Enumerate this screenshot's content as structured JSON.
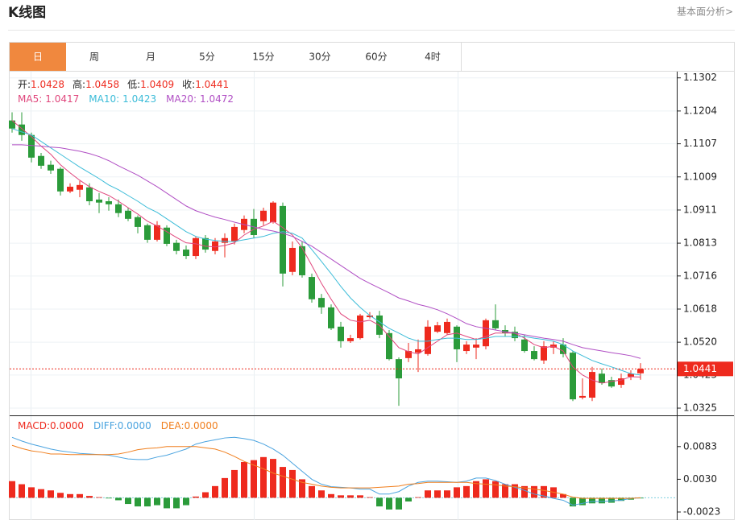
{
  "header": {
    "title": "K线图",
    "link": "基本面分析>"
  },
  "tabs": [
    "日",
    "周",
    "月",
    "5分",
    "15分",
    "30分",
    "60分",
    "4时"
  ],
  "active_tab": 0,
  "chart_data": [
    {
      "type": "candlestick",
      "up_color": "#ee2a1e",
      "down_color": "#2b9b3a",
      "ylim": [
        1.0306,
        1.1318
      ],
      "yticks": [
        1.1302,
        1.1204,
        1.1107,
        1.1009,
        1.0911,
        1.0813,
        1.0716,
        1.0618,
        {
          "value": 1.052,
          "label": "1.0520"
        },
        1.0423,
        1.0325
      ],
      "grid": true,
      "readout_labels": [
        "开:",
        "高:",
        "低:",
        "收:"
      ],
      "open": [
        1.1176,
        1.1164,
        1.1133,
        1.1071,
        1.1045,
        1.1033,
        1.0966,
        1.0971,
        1.0978,
        1.0942,
        1.0937,
        1.0928,
        1.0909,
        1.089,
        1.0866,
        1.0823,
        1.0859,
        1.0814,
        1.0794,
        1.0775,
        1.0828,
        1.079,
        1.0814,
        1.0818,
        1.0852,
        1.0885,
        1.0878,
        1.0875,
        1.0923,
        1.0728,
        1.0804,
        1.0713,
        1.0651,
        1.0623,
        1.0566,
        1.0523,
        1.0532,
        1.0594,
        1.0599,
        1.0547,
        1.047,
        1.0473,
        1.0489,
        1.0485,
        1.0551,
        1.0547,
        1.0566,
        1.0494,
        1.0504,
        1.0508,
        1.0585,
        1.0556,
        1.0551,
        1.0528,
        1.0494,
        1.0466,
        1.0504,
        1.0513,
        1.0489,
        1.0356,
        1.0356,
        1.0427,
        1.0408,
        1.0394,
        1.0418,
        1.0428
      ],
      "high": [
        1.12,
        1.12,
        1.114,
        1.108,
        1.1057,
        1.1038,
        1.099,
        1.0997,
        1.099,
        1.0961,
        1.0949,
        1.0942,
        1.0918,
        1.0895,
        1.0871,
        1.0878,
        1.0866,
        1.0823,
        1.0806,
        1.0833,
        1.0837,
        1.0828,
        1.0842,
        1.0871,
        1.0895,
        1.0914,
        1.0918,
        1.0937,
        1.0933,
        1.0818,
        1.0818,
        1.0723,
        1.0663,
        1.0632,
        1.058,
        1.0542,
        1.0604,
        1.0609,
        1.0613,
        1.0556,
        1.0475,
        1.0518,
        1.0528,
        1.0585,
        1.058,
        1.059,
        1.057,
        1.0523,
        1.0532,
        1.059,
        1.0632,
        1.057,
        1.0566,
        1.0542,
        1.0508,
        1.0523,
        1.0523,
        1.0532,
        1.0494,
        1.0413,
        1.0447,
        1.0442,
        1.0418,
        1.0427,
        1.0437,
        1.0458
      ],
      "low": [
        1.114,
        1.1116,
        1.1052,
        1.1033,
        1.1018,
        1.0954,
        1.0961,
        1.0949,
        1.0925,
        1.0902,
        1.0909,
        1.089,
        1.0878,
        1.0842,
        1.0814,
        1.0818,
        1.0804,
        1.078,
        1.0766,
        1.0766,
        1.0785,
        1.078,
        1.0771,
        1.0809,
        1.0842,
        1.0828,
        1.0866,
        1.0871,
        1.0685,
        1.0718,
        1.0711,
        1.0637,
        1.0604,
        1.0556,
        1.0504,
        1.0518,
        1.0528,
        1.059,
        1.0532,
        1.0466,
        1.0332,
        1.0461,
        1.0432,
        1.048,
        1.0547,
        1.0542,
        1.0461,
        1.0485,
        1.047,
        1.0499,
        1.0556,
        1.0537,
        1.0523,
        1.0489,
        1.0466,
        1.0456,
        1.0485,
        1.0475,
        1.0346,
        1.0351,
        1.0346,
        1.0394,
        1.0385,
        1.0385,
        1.0408,
        1.0409
      ],
      "close": [
        1.1152,
        1.1133,
        1.1066,
        1.1042,
        1.1028,
        1.0966,
        1.098,
        1.0985,
        1.0937,
        1.0933,
        1.0928,
        1.0902,
        1.0885,
        1.0861,
        1.0823,
        1.0866,
        1.0811,
        1.079,
        1.0775,
        1.0828,
        1.0794,
        1.0818,
        1.0828,
        1.0861,
        1.0885,
        1.0837,
        1.0909,
        1.0933,
        1.0723,
        1.0799,
        1.0718,
        1.0647,
        1.0623,
        1.0561,
        1.0523,
        1.0532,
        1.0599,
        1.0599,
        1.0542,
        1.047,
        1.0413,
        1.0494,
        1.0499,
        1.0566,
        1.057,
        1.058,
        1.0499,
        1.0513,
        1.0513,
        1.0585,
        1.0561,
        1.0547,
        1.0532,
        1.0494,
        1.047,
        1.0508,
        1.0513,
        1.0485,
        1.0351,
        1.0361,
        1.0432,
        1.0399,
        1.0389,
        1.0413,
        1.0427,
        1.0441
      ],
      "series": [
        {
          "name": "MA5:",
          "color": "#e0467c",
          "values": [
            1.1176,
            1.1152,
            1.1128,
            1.11,
            1.1076,
            1.1045,
            1.1021,
            1.0999,
            1.098,
            1.0966,
            1.0954,
            1.0937,
            1.0918,
            1.0899,
            1.0878,
            1.0864,
            1.0847,
            1.083,
            1.0814,
            1.0811,
            1.0804,
            1.0802,
            1.0806,
            1.0814,
            1.0837,
            1.0854,
            1.0864,
            1.0878,
            1.0859,
            1.0837,
            1.0799,
            1.0747,
            1.0694,
            1.0647,
            1.0604,
            1.0585,
            1.058,
            1.0585,
            1.057,
            1.0537,
            1.0504,
            1.0492,
            1.0485,
            1.0504,
            1.0523,
            1.0542,
            1.0547,
            1.0537,
            1.0528,
            1.0537,
            1.0547,
            1.0547,
            1.0547,
            1.0532,
            1.0513,
            1.0504,
            1.0508,
            1.0494,
            1.0447,
            1.0423,
            1.0408,
            1.0399,
            1.0404,
            1.0408,
            1.0418,
            1.0417
          ]
        },
        {
          "name": "MA10:",
          "color": "#3cbcd8",
          "values": [
            1.1152,
            1.1142,
            1.1133,
            1.1114,
            1.1095,
            1.1076,
            1.1057,
            1.1038,
            1.1021,
            1.1004,
            1.0985,
            1.0971,
            1.0954,
            1.0937,
            1.0918,
            1.0904,
            1.0885,
            1.0866,
            1.0847,
            1.0833,
            1.0825,
            1.0821,
            1.0818,
            1.0818,
            1.0823,
            1.0828,
            1.0833,
            1.0842,
            1.0847,
            1.0842,
            1.0828,
            1.0794,
            1.0759,
            1.0723,
            1.0685,
            1.0651,
            1.0623,
            1.0599,
            1.058,
            1.0561,
            1.0547,
            1.0532,
            1.0523,
            1.0523,
            1.0528,
            1.0532,
            1.0532,
            1.0528,
            1.0528,
            1.0532,
            1.0537,
            1.0537,
            1.0537,
            1.0537,
            1.0532,
            1.0528,
            1.0523,
            1.0513,
            1.0494,
            1.048,
            1.0466,
            1.0456,
            1.0447,
            1.0437,
            1.0427,
            1.0423
          ]
        },
        {
          "name": "MA20:",
          "color": "#b04ec4",
          "values": [
            1.1104,
            1.1104,
            1.1102,
            1.11,
            1.1097,
            1.1095,
            1.109,
            1.1085,
            1.1078,
            1.1069,
            1.1057,
            1.1042,
            1.1028,
            1.1014,
            1.0997,
            1.098,
            1.0961,
            1.0942,
            1.0923,
            1.0909,
            1.0899,
            1.089,
            1.0883,
            1.0875,
            1.0868,
            1.0861,
            1.0854,
            1.0849,
            1.0842,
            1.0833,
            1.0818,
            1.0804,
            1.0785,
            1.0766,
            1.0747,
            1.0728,
            1.0709,
            1.0694,
            1.068,
            1.0666,
            1.0651,
            1.0642,
            1.0632,
            1.0625,
            1.0616,
            1.0604,
            1.059,
            1.0575,
            1.0566,
            1.0561,
            1.0556,
            1.0551,
            1.0547,
            1.0542,
            1.0537,
            1.0532,
            1.0528,
            1.0523,
            1.0513,
            1.0504,
            1.0499,
            1.0494,
            1.0489,
            1.0485,
            1.048,
            1.0472
          ]
        }
      ]
    },
    {
      "type": "macd",
      "ylim": [
        -0.0036,
        0.0131
      ],
      "yticks": [
        0.0083,
        {
          "value": 0.003,
          "label": "0.0030"
        },
        -0.0023
      ],
      "bars": {
        "name": "MACD:",
        "up_color": "#ee2a1e",
        "down_color": "#2b9b3a",
        "readout": {
          "value": 0,
          "label": "0.0000"
        },
        "values": [
          0.0027,
          0.0022,
          0.0017,
          0.0014,
          0.0012,
          0.0008,
          0.0006,
          0.0006,
          0.0003,
          0.0001,
          -0.0001,
          -0.0004,
          -0.001,
          -0.0014,
          -0.0014,
          -0.0012,
          -0.0017,
          -0.0017,
          -0.0012,
          0.0002,
          0.0009,
          0.0019,
          0.0032,
          0.0045,
          0.0058,
          0.0061,
          0.0066,
          0.0063,
          0.005,
          0.0045,
          0.003,
          0.0019,
          0.0012,
          0.0006,
          0.0004,
          0.0004,
          0.0004,
          0.0001,
          -0.0014,
          -0.0019,
          -0.0019,
          -0.0006,
          0.0001,
          0.0012,
          0.0012,
          0.0012,
          0.0017,
          0.0019,
          0.0027,
          0.003,
          0.0027,
          0.0022,
          0.0022,
          0.0019,
          0.0019,
          0.0019,
          0.0017,
          0.0006,
          -0.0014,
          -0.0012,
          -0.0009,
          -0.0009,
          -0.0008,
          -0.0005,
          -0.0003,
          -0.0001
        ]
      },
      "series": [
        {
          "name": "DIFF:",
          "color": "#4aa3df",
          "readout": {
            "value": 0,
            "label": "0.0000"
          },
          "values": [
            0.0098,
            0.0092,
            0.0087,
            0.0083,
            0.0079,
            0.0076,
            0.0074,
            0.0072,
            0.0071,
            0.007,
            0.0069,
            0.0066,
            0.0063,
            0.0062,
            0.0062,
            0.0066,
            0.0069,
            0.0074,
            0.0079,
            0.0087,
            0.0091,
            0.0094,
            0.0097,
            0.0098,
            0.0096,
            0.0093,
            0.0087,
            0.0079,
            0.0069,
            0.0056,
            0.0043,
            0.003,
            0.0022,
            0.0018,
            0.0017,
            0.0016,
            0.0014,
            0.0014,
            0.0006,
            0.0006,
            0.001,
            0.0019,
            0.0025,
            0.0027,
            0.0027,
            0.0026,
            0.0025,
            0.0027,
            0.0032,
            0.0032,
            0.0028,
            0.0022,
            0.0017,
            0.0012,
            0.0006,
            0.0003,
            -0.0001,
            -0.0004,
            -0.0012,
            -0.0009,
            -0.0006,
            -0.0006,
            -0.0005,
            -0.0004,
            -0.0001,
            0
          ]
        },
        {
          "name": "DEA:",
          "color": "#f07f1e",
          "readout": {
            "value": 0,
            "label": "0.0000"
          },
          "values": [
            0.0085,
            0.008,
            0.0076,
            0.0074,
            0.0071,
            0.0071,
            0.007,
            0.007,
            0.007,
            0.007,
            0.007,
            0.0071,
            0.0074,
            0.0078,
            0.008,
            0.0081,
            0.0083,
            0.0083,
            0.0083,
            0.0083,
            0.0081,
            0.0079,
            0.0074,
            0.0067,
            0.0059,
            0.0053,
            0.0047,
            0.004,
            0.0035,
            0.003,
            0.0025,
            0.0022,
            0.0019,
            0.0017,
            0.0016,
            0.0016,
            0.0016,
            0.0016,
            0.0017,
            0.0018,
            0.0019,
            0.0022,
            0.0023,
            0.0025,
            0.0025,
            0.0025,
            0.0025,
            0.0025,
            0.0023,
            0.0022,
            0.0021,
            0.0019,
            0.0018,
            0.0016,
            0.0014,
            0.0012,
            0.0009,
            0.0006,
            0.0001,
            -0.0001,
            -0.0001,
            -0.0001,
            -0.0001,
            -0.0001,
            -0.0001,
            0
          ]
        }
      ]
    }
  ]
}
